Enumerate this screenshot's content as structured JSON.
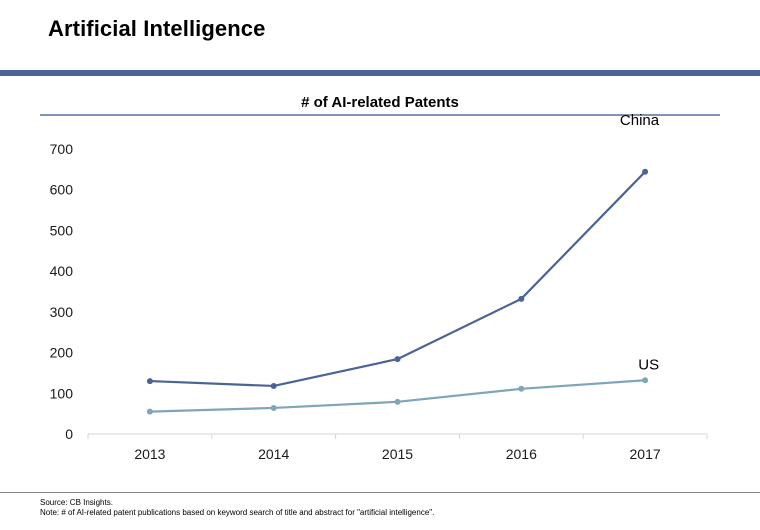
{
  "header": {
    "title": "Artificial Intelligence"
  },
  "colors": {
    "title_rule": "#4a6595",
    "chart_title_rule": "#7f93b4",
    "axis": "#d5d5d5",
    "china_line": "#4a6595",
    "us_line": "#7fa5b8"
  },
  "chart_data": {
    "type": "line",
    "title": "# of AI-related Patents",
    "xlabel": "",
    "ylabel": "",
    "categories": [
      "2013",
      "2014",
      "2015",
      "2016",
      "2017"
    ],
    "ylim": [
      0,
      700
    ],
    "yticks": [
      "0",
      "100",
      "200",
      "300",
      "400",
      "500",
      "600",
      "700"
    ],
    "grid": false,
    "series": [
      {
        "name": "China",
        "values": [
          130,
          118,
          184,
          332,
          644
        ]
      },
      {
        "name": "US",
        "values": [
          55,
          64,
          79,
          111,
          132
        ]
      }
    ]
  },
  "footer": {
    "source": "Source:  CB Insights.",
    "note": "Note:  # of AI-related patent publications based on keyword search of title and abstract for \"artificial intelligence\"."
  }
}
